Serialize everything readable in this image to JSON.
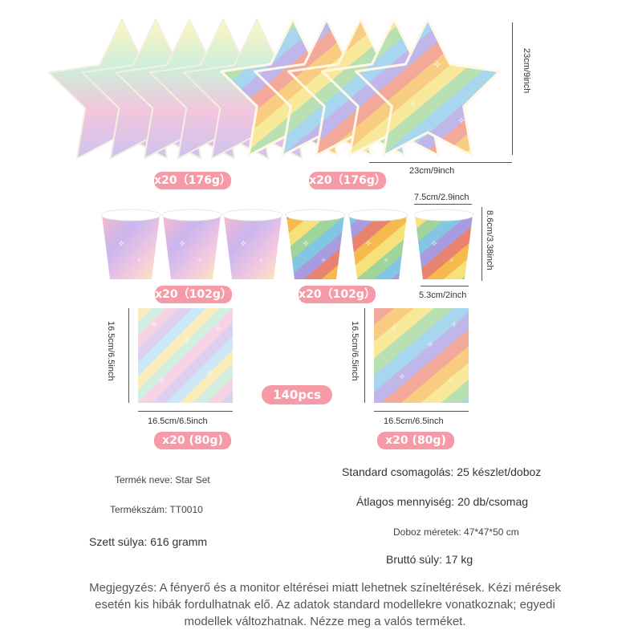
{
  "plates": {
    "left_badge": "x20（176g）",
    "right_badge": "x20（176g）",
    "height_dim": "23cm/9inch",
    "width_dim": "23cm/9inch"
  },
  "cups": {
    "left_badge": "x20（102g）",
    "right_badge": "x20（102g）",
    "top_dim": "7.5cm/2.9inch",
    "height_dim": "8.6cm/3.38inch",
    "bottom_dim": "5.3cm/2inch"
  },
  "napkins": {
    "left_height_dim": "16.5cm/6.5inch",
    "left_width_dim": "16.5cm/6.5inch",
    "right_height_dim": "16.5cm/6.5inch",
    "right_width_dim": "16.5cm/6.5inch",
    "left_badge": "x20 (80g)",
    "right_badge": "x20 (80g)",
    "total_badge": "140pcs"
  },
  "specs": {
    "product_name": "Termék neve: Star Set",
    "product_number": "Termékszám: TT0010",
    "set_weight": "Szett súlya: 616 gramm",
    "standard_packaging": "Standard csomagolás: 25 készlet/doboz",
    "average_quantity": "Átlagos mennyiség: 20 db/csomag",
    "box_size": "Doboz méretek: 47*47*50 cm",
    "gross_weight": "Bruttó súly: 17 kg"
  },
  "note": "Megjegyzés: A fényerő és a monitor eltérései miatt lehetnek színeltérések. Kézi mérések esetén kis hibák fordulhatnak elő. Az adatok standard modellekre vonatkoznak; egyedi modellek változhatnak. Nézze meg a valós terméket.",
  "colors": {
    "badge": "#f59aa6",
    "pastel": [
      "#fdf3b0",
      "#cdeeda",
      "#f8c9dc",
      "#d8c4f0",
      "#bfe0f5"
    ],
    "bright": [
      "#e8836f",
      "#f5b94d",
      "#f7e27a",
      "#9fd49a",
      "#83c6e4",
      "#a99be0"
    ]
  }
}
